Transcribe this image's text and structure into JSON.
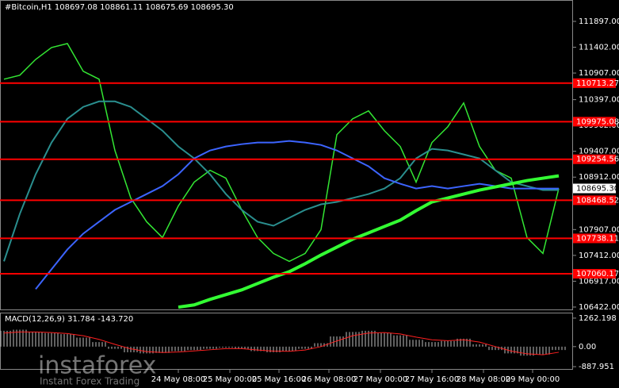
{
  "chart_data": [
    {
      "type": "line",
      "title": "#Bitcoin,H1  108697.08 108861.11 108675.69 108695.30",
      "ylim": [
        106376,
        112307
      ],
      "yticks": [
        {
          "value": 111897,
          "label": "111897.00"
        },
        {
          "value": 111402,
          "label": "111402.00"
        },
        {
          "value": 110907,
          "label": "110907.00"
        },
        {
          "value": 110397,
          "label": "110397.00"
        },
        {
          "value": 109902,
          "label": "109902.00"
        },
        {
          "value": 109407,
          "label": "109407.00"
        },
        {
          "value": 108912,
          "label": "108912.00"
        },
        {
          "value": 107907,
          "label": "107907.00"
        },
        {
          "value": 107412,
          "label": "107412.00"
        },
        {
          "value": 106917,
          "label": "106917.00"
        },
        {
          "value": 106422,
          "label": "106422.00"
        }
      ],
      "x_labels": [
        "24 May 08:00",
        "25 May 00:00",
        "25 May 16:00",
        "26 May 08:00",
        "27 May 00:00",
        "27 May 16:00",
        "28 May 08:00",
        "29 May 00:00"
      ],
      "series": [
        {
          "color": "#33e633",
          "values": [
            110789,
            110865,
            111168,
            111396,
            111472,
            110941,
            110789,
            109423,
            108512,
            108057,
            107753,
            108360,
            108816,
            109043,
            108892,
            108284,
            107753,
            107449,
            107298,
            107449,
            107905,
            109726,
            110030,
            110182,
            109802,
            109499,
            108816,
            109575,
            109878,
            110334,
            109499,
            109043,
            108892,
            107753,
            107449,
            108695
          ]
        },
        {
          "color": "#2a8f8f",
          "values": [
            107298,
            108208,
            108967,
            109575,
            110030,
            110258,
            110364,
            110364,
            110258,
            110030,
            109802,
            109499,
            109271,
            108967,
            108588,
            108284,
            108057,
            107981,
            108133,
            108284,
            108391,
            108436,
            108512,
            108588,
            108694,
            108892,
            109271,
            109453,
            109423,
            109347,
            109271,
            109043,
            108816,
            108740,
            108664,
            108664
          ]
        },
        {
          "color": "#3c64ff",
          "values": [
            null,
            null,
            106766,
            107146,
            107525,
            107829,
            108057,
            108284,
            108436,
            108588,
            108740,
            108967,
            109271,
            109423,
            109499,
            109544,
            109575,
            109575,
            109605,
            109575,
            109529,
            109423,
            109271,
            109119,
            108892,
            108785,
            108694,
            108740,
            108694,
            108740,
            108785,
            108740,
            108694,
            108694,
            108694,
            108694
          ]
        },
        {
          "color": "#33ff33",
          "values": [
            null,
            null,
            null,
            null,
            null,
            null,
            null,
            null,
            null,
            null,
            null,
            106420,
            106463,
            106569,
            106660,
            106751,
            106873,
            106994,
            107100,
            107252,
            107419,
            107571,
            107723,
            107844,
            107966,
            108087,
            108269,
            108436,
            108512,
            108588,
            108664,
            108725,
            108785,
            108846,
            108892,
            108937
          ]
        }
      ],
      "levels": [
        {
          "value": 110713.27,
          "color": "#ff0000"
        },
        {
          "value": 109975.08,
          "color": "#ff0000"
        },
        {
          "value": 109254.56,
          "color": "#ff0000"
        },
        {
          "value": 108468.52,
          "color": "#ff0000"
        },
        {
          "value": 107738.11,
          "color": "#ff0000"
        },
        {
          "value": 107060.17,
          "color": "#ff0000"
        }
      ],
      "current_price": {
        "value": 108695.3,
        "label": "108695.30"
      }
    },
    {
      "type": "macd",
      "title": "MACD(12,26,9) 31.784 -143.720",
      "ylim": [
        -990,
        1470
      ],
      "yticks": [
        1262.198,
        {
          "value": 0,
          "label": "0.00"
        },
        -887.951
      ],
      "series": [
        {
          "color": "#c0c0c0",
          "values": [
            700,
            750,
            650,
            600,
            550,
            400,
            200,
            -100,
            -250,
            -300,
            -280,
            -200,
            -150,
            -100,
            -50,
            -100,
            -200,
            -250,
            -200,
            -100,
            150,
            450,
            650,
            700,
            600,
            500,
            300,
            200,
            250,
            350,
            100,
            -150,
            -300,
            -400,
            -350,
            -150
          ]
        },
        {
          "color": "#ff2020",
          "values": [
            600,
            650,
            650,
            620,
            580,
            480,
            320,
            100,
            -100,
            -220,
            -260,
            -240,
            -190,
            -140,
            -90,
            -90,
            -150,
            -200,
            -210,
            -150,
            0,
            250,
            480,
            600,
            620,
            560,
            420,
            300,
            260,
            300,
            200,
            0,
            -200,
            -320,
            -360,
            -250
          ]
        }
      ]
    }
  ],
  "watermark": {
    "brand": "instaforex",
    "tagline": "Instant Forex Trading"
  }
}
